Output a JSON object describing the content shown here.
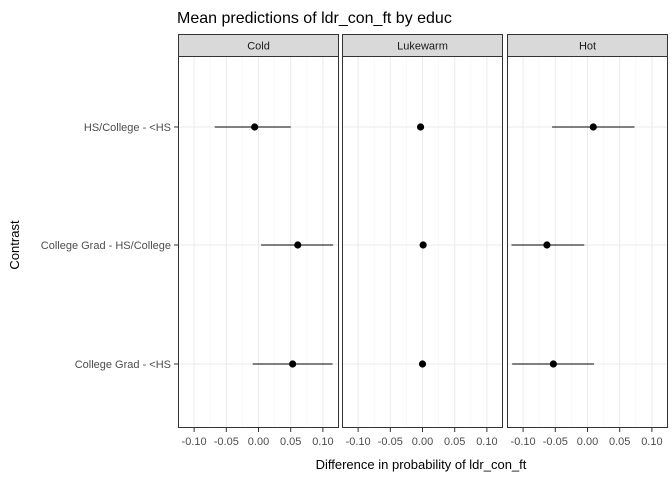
{
  "chart_data": {
    "type": "scatter",
    "subtype": "dot-and-whisker facet",
    "title": "Mean predictions of ldr_con_ft by educ",
    "xlabel": "Difference in probability of ldr_con_ft",
    "ylabel": "Contrast",
    "xlim": [
      -0.125,
      0.125
    ],
    "x_ticks": [
      -0.1,
      -0.05,
      0.0,
      0.05,
      0.1
    ],
    "x_tick_labels": [
      "-0.10",
      "-0.05",
      "0.00",
      "0.05",
      "0.10"
    ],
    "categories": [
      "HS/College - <HS",
      "College Grad - HS/College",
      "College Grad - <HS"
    ],
    "grid": true,
    "facets": [
      {
        "name": "Cold",
        "points": [
          {
            "category": "HS/College - <HS",
            "estimate": -0.006,
            "low": -0.068,
            "high": 0.05
          },
          {
            "category": "College Grad - HS/College",
            "estimate": 0.061,
            "low": 0.004,
            "high": 0.116
          },
          {
            "category": "College Grad - <HS",
            "estimate": 0.053,
            "low": -0.009,
            "high": 0.115
          }
        ]
      },
      {
        "name": "Lukewarm",
        "points": [
          {
            "category": "HS/College - <HS",
            "estimate": -0.003,
            "low": -0.006,
            "high": 0.0
          },
          {
            "category": "College Grad - HS/College",
            "estimate": 0.001,
            "low": -0.002,
            "high": 0.004
          },
          {
            "category": "College Grad - <HS",
            "estimate": 0.0,
            "low": -0.003,
            "high": 0.003
          }
        ]
      },
      {
        "name": "Hot",
        "points": [
          {
            "category": "HS/College - <HS",
            "estimate": 0.009,
            "low": -0.055,
            "high": 0.073
          },
          {
            "category": "College Grad - HS/College",
            "estimate": -0.063,
            "low": -0.118,
            "high": -0.005
          },
          {
            "category": "College Grad - <HS",
            "estimate": -0.053,
            "low": -0.117,
            "high": 0.01
          }
        ]
      }
    ],
    "colors": {
      "panel_border": "#333333",
      "strip_fill": "#d9d9d9",
      "grid_major": "#ebebeb",
      "grid_minor": "#f5f5f5",
      "point": "#000000"
    }
  }
}
